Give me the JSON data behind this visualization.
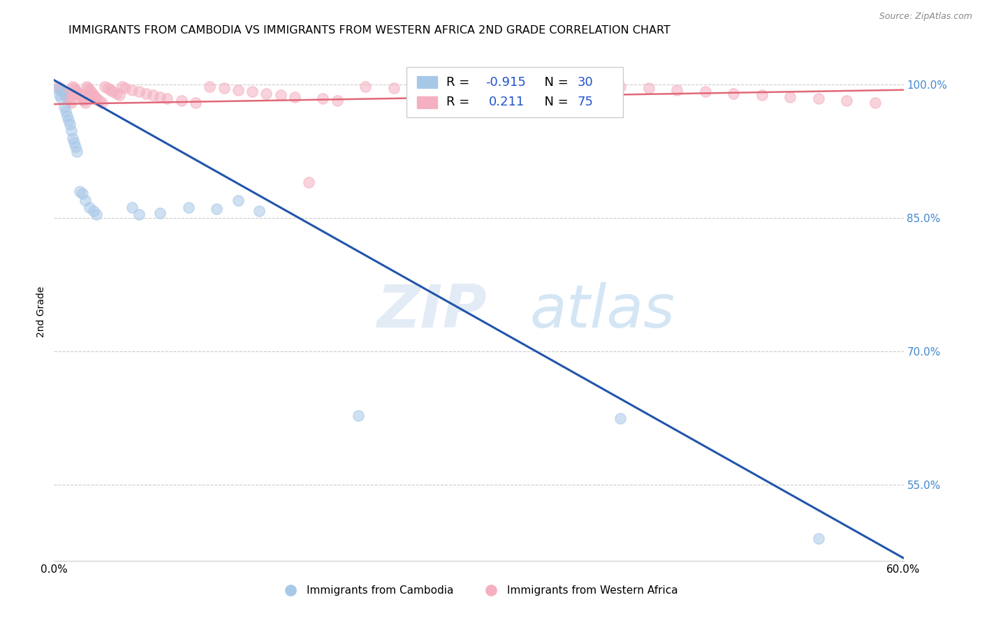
{
  "title": "IMMIGRANTS FROM CAMBODIA VS IMMIGRANTS FROM WESTERN AFRICA 2ND GRADE CORRELATION CHART",
  "source": "Source: ZipAtlas.com",
  "ylabel": "2nd Grade",
  "legend_label_blue": "Immigrants from Cambodia",
  "legend_label_pink": "Immigrants from Western Africa",
  "r_blue": -0.915,
  "n_blue": 30,
  "r_pink": 0.211,
  "n_pink": 75,
  "color_blue": "#a8c8e8",
  "color_pink": "#f4b0c0",
  "line_color_blue": "#2255aa",
  "line_color_pink": "#e06878",
  "xmin": 0.0,
  "xmax": 0.6,
  "ymin": 0.465,
  "ymax": 1.025,
  "yticks": [
    0.55,
    0.7,
    0.85,
    1.0
  ],
  "ytick_labels": [
    "55.0%",
    "70.0%",
    "85.0%",
    "100.0%"
  ],
  "xticks": [
    0.0,
    0.1,
    0.2,
    0.3,
    0.4,
    0.5,
    0.6
  ],
  "xtick_labels": [
    "0.0%",
    "",
    "",
    "",
    "",
    "",
    "60.0%"
  ],
  "watermark_zip": "ZIP",
  "watermark_atlas": "atlas",
  "blue_line_x0": 0.0,
  "blue_line_y0": 1.005,
  "blue_line_x1": 0.6,
  "blue_line_y1": 0.468,
  "pink_line_x0": 0.0,
  "pink_line_y0": 0.978,
  "pink_line_x1": 0.6,
  "pink_line_y1": 0.994,
  "blue_scatter_x": [
    0.003,
    0.004,
    0.005,
    0.006,
    0.007,
    0.008,
    0.009,
    0.01,
    0.011,
    0.012,
    0.013,
    0.014,
    0.015,
    0.016,
    0.018,
    0.02,
    0.022,
    0.025,
    0.028,
    0.03,
    0.055,
    0.06,
    0.075,
    0.095,
    0.115,
    0.13,
    0.145,
    0.215,
    0.4,
    0.54
  ],
  "blue_scatter_y": [
    0.995,
    0.988,
    0.985,
    0.992,
    0.975,
    0.97,
    0.965,
    0.96,
    0.955,
    0.948,
    0.94,
    0.935,
    0.93,
    0.925,
    0.88,
    0.878,
    0.87,
    0.862,
    0.858,
    0.854,
    0.862,
    0.854,
    0.856,
    0.862,
    0.86,
    0.87,
    0.858,
    0.628,
    0.625,
    0.49
  ],
  "pink_scatter_x": [
    0.003,
    0.004,
    0.005,
    0.006,
    0.007,
    0.008,
    0.009,
    0.01,
    0.011,
    0.012,
    0.013,
    0.014,
    0.015,
    0.016,
    0.017,
    0.018,
    0.019,
    0.02,
    0.021,
    0.022,
    0.023,
    0.024,
    0.025,
    0.026,
    0.027,
    0.028,
    0.029,
    0.03,
    0.032,
    0.034,
    0.036,
    0.038,
    0.04,
    0.042,
    0.044,
    0.046,
    0.048,
    0.05,
    0.055,
    0.06,
    0.065,
    0.07,
    0.075,
    0.08,
    0.09,
    0.1,
    0.11,
    0.12,
    0.13,
    0.14,
    0.15,
    0.16,
    0.17,
    0.18,
    0.19,
    0.2,
    0.22,
    0.24,
    0.26,
    0.28,
    0.3,
    0.32,
    0.34,
    0.36,
    0.38,
    0.4,
    0.42,
    0.44,
    0.46,
    0.48,
    0.5,
    0.52,
    0.54,
    0.56,
    0.58
  ],
  "pink_scatter_y": [
    0.998,
    0.996,
    0.994,
    0.992,
    0.99,
    0.988,
    0.986,
    0.984,
    0.982,
    0.98,
    0.998,
    0.996,
    0.994,
    0.992,
    0.99,
    0.988,
    0.986,
    0.984,
    0.982,
    0.98,
    0.998,
    0.996,
    0.994,
    0.992,
    0.99,
    0.988,
    0.986,
    0.984,
    0.982,
    0.98,
    0.998,
    0.996,
    0.994,
    0.992,
    0.99,
    0.988,
    0.998,
    0.996,
    0.994,
    0.992,
    0.99,
    0.988,
    0.986,
    0.984,
    0.982,
    0.98,
    0.998,
    0.996,
    0.994,
    0.992,
    0.99,
    0.988,
    0.986,
    0.89,
    0.984,
    0.982,
    0.998,
    0.996,
    0.994,
    0.992,
    0.99,
    0.988,
    0.986,
    0.984,
    0.982,
    0.998,
    0.996,
    0.994,
    0.992,
    0.99,
    0.988,
    0.986,
    0.984,
    0.982,
    0.98
  ]
}
